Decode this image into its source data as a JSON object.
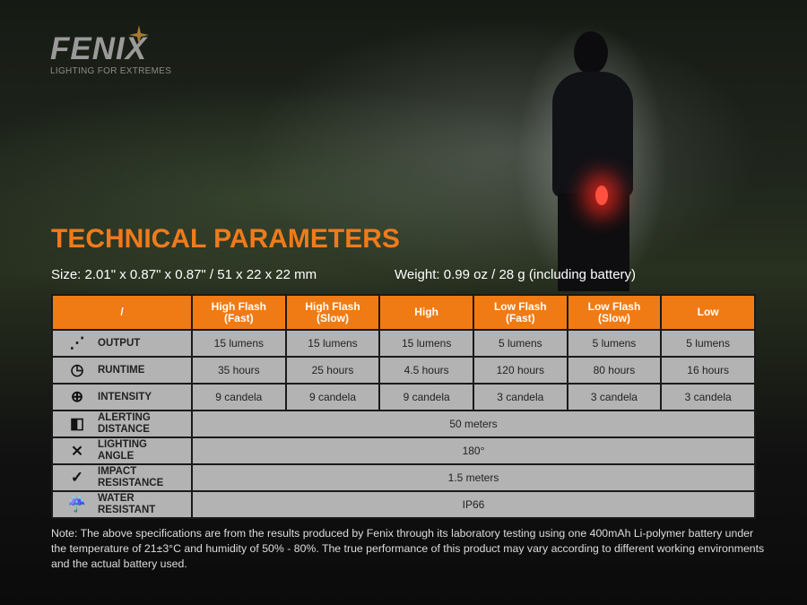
{
  "brand": {
    "name": "FENIX",
    "tagline": "LIGHTING FOR EXTREMES"
  },
  "title": "TECHNICAL PARAMETERS",
  "size": "Size: 2.01\" x 0.87\" x 0.87\" / 51 x 22 x 22 mm",
  "weight": "Weight: 0.99 oz / 28 g (including battery)",
  "table": {
    "corner": "/",
    "modes": [
      [
        "High Flash",
        "(Fast)"
      ],
      [
        "High Flash",
        "(Slow)"
      ],
      [
        "High",
        ""
      ],
      [
        "Low Flash",
        "(Fast)"
      ],
      [
        "Low Flash",
        "(Slow)"
      ],
      [
        "Low",
        ""
      ]
    ],
    "rows": [
      {
        "icon": "output-icon",
        "label": [
          "OUTPUT"
        ],
        "values": [
          "15 lumens",
          "15 lumens",
          "15 lumens",
          "5 lumens",
          "5 lumens",
          "5 lumens"
        ]
      },
      {
        "icon": "clock-icon",
        "label": [
          "RUNTIME"
        ],
        "values": [
          "35 hours",
          "25 hours",
          "4.5 hours",
          "120 hours",
          "80 hours",
          "16 hours"
        ]
      },
      {
        "icon": "target-icon",
        "label": [
          "INTENSITY"
        ],
        "values": [
          "9 candela",
          "9 candela",
          "9 candela",
          "3 candela",
          "3 candela",
          "3 candela"
        ]
      }
    ],
    "spans": [
      {
        "icon": "distance-icon",
        "label": [
          "ALERTING",
          "DISTANCE"
        ],
        "value": "50 meters"
      },
      {
        "icon": "angle-icon",
        "label": [
          "LIGHTING",
          "ANGLE"
        ],
        "value": "180°"
      },
      {
        "icon": "impact-icon",
        "label": [
          "IMPACT",
          "RESISTANCE"
        ],
        "value": "1.5 meters"
      },
      {
        "icon": "water-icon",
        "label": [
          "WATER",
          "RESISTANT"
        ],
        "value": "IP66"
      }
    ]
  },
  "note": "Note: The above specifications are from the results produced by Fenix through its laboratory testing using one 400mAh Li-polymer battery under the temperature of 21±3°C and humidity of 50% - 80%. The true performance of this product may vary according to different working environments and the actual battery used.",
  "colors": {
    "accent": "#f07b14",
    "cell": "#b3b3b3"
  }
}
